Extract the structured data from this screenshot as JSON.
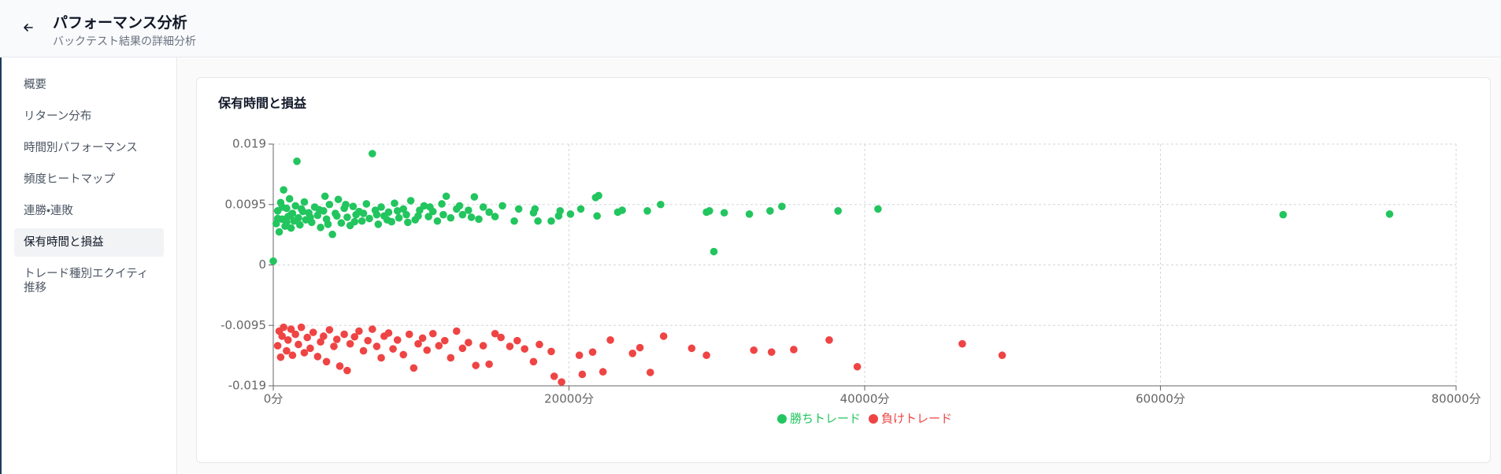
{
  "header": {
    "title": "パフォーマンス分析",
    "subtitle": "バックテスト結果の詳細分析"
  },
  "sidebar": {
    "items": [
      "概要",
      "リターン分布",
      "時間別パフォーマンス",
      "頻度ヒートマップ",
      "連勝・連敗",
      "保有時間と損益",
      "トレード種別エクイティ推移"
    ]
  },
  "chart_data": {
    "type": "scatter",
    "title": "保有時間と損益",
    "xlim": [
      0,
      80000
    ],
    "xticks": [
      {
        "value": 0,
        "label": "0分"
      },
      {
        "value": 20000,
        "label": "20000分"
      },
      {
        "value": 40000,
        "label": "40000分"
      },
      {
        "value": 60000,
        "label": "60000分"
      },
      {
        "value": 80000,
        "label": "80000分"
      }
    ],
    "ylim": [
      -0.019,
      0.019
    ],
    "yticks": [
      -0.019,
      -0.0095,
      0,
      0.0095,
      0.019
    ],
    "grid": true,
    "legend": "bottom",
    "series": [
      {
        "name": "勝ちトレード",
        "color": "#22c55e",
        "x": [
          0,
          200,
          300,
          300,
          400,
          500,
          600,
          600,
          700,
          800,
          900,
          900,
          1000,
          1100,
          1200,
          1200,
          1300,
          1400,
          1500,
          1600,
          1700,
          1800,
          1900,
          2000,
          2100,
          2200,
          2400,
          2500,
          2600,
          2800,
          3000,
          3100,
          3200,
          3400,
          3500,
          3600,
          3700,
          3800,
          4000,
          4200,
          4300,
          4400,
          4600,
          4800,
          4900,
          5000,
          5200,
          5400,
          5500,
          5600,
          5800,
          6000,
          6100,
          6300,
          6500,
          6700,
          6900,
          7000,
          7100,
          7300,
          7500,
          7700,
          7800,
          8000,
          8200,
          8400,
          8500,
          8800,
          9000,
          9100,
          9300,
          9600,
          9800,
          9900,
          10200,
          10500,
          10600,
          10800,
          11100,
          11400,
          11500,
          11700,
          12000,
          12400,
          12600,
          12800,
          13200,
          13400,
          13600,
          13900,
          14200,
          14600,
          15000,
          15500,
          16300,
          16600,
          17600,
          17700,
          17900,
          18800,
          19300,
          19400,
          20100,
          20800,
          21800,
          21900,
          22000,
          23300,
          23600,
          25300,
          26200,
          29300,
          29500,
          29800,
          30500,
          32200,
          33600,
          34400,
          38200,
          40900,
          68300,
          75500
        ],
        "values": [
          0.0006,
          0.0065,
          0.0085,
          0.0073,
          0.0052,
          0.0098,
          0.0072,
          0.0091,
          0.0118,
          0.0061,
          0.0089,
          0.0067,
          0.0076,
          0.0104,
          0.0058,
          0.0079,
          0.0081,
          0.0069,
          0.0093,
          0.0163,
          0.0074,
          0.0063,
          0.0088,
          0.0084,
          0.0099,
          0.0071,
          0.0082,
          0.0075,
          0.0067,
          0.0091,
          0.0078,
          0.0087,
          0.0059,
          0.0085,
          0.0108,
          0.0072,
          0.0064,
          0.0095,
          0.0048,
          0.0081,
          0.0077,
          0.0103,
          0.0066,
          0.0089,
          0.0095,
          0.0075,
          0.0062,
          0.0092,
          0.0068,
          0.0079,
          0.0084,
          0.0069,
          0.0081,
          0.0096,
          0.0073,
          0.0175,
          0.0086,
          0.0079,
          0.0064,
          0.0091,
          0.0077,
          0.0071,
          0.0083,
          0.0068,
          0.0097,
          0.0085,
          0.0074,
          0.0088,
          0.0079,
          0.0067,
          0.0101,
          0.0071,
          0.0077,
          0.0086,
          0.0093,
          0.0076,
          0.0091,
          0.0084,
          0.0069,
          0.0096,
          0.0079,
          0.0108,
          0.0074,
          0.0088,
          0.0093,
          0.0079,
          0.0086,
          0.0075,
          0.0107,
          0.0072,
          0.0091,
          0.0083,
          0.0076,
          0.0093,
          0.0069,
          0.0088,
          0.0082,
          0.0088,
          0.0069,
          0.0069,
          0.0077,
          0.0085,
          0.008,
          0.0088,
          0.0106,
          0.0077,
          0.0109,
          0.0083,
          0.0086,
          0.0085,
          0.0095,
          0.0083,
          0.0085,
          0.0021,
          0.0082,
          0.008,
          0.0085,
          0.0092,
          0.0085,
          0.0088,
          0.0079,
          0.008
        ]
      },
      {
        "name": "負けトレード",
        "color": "#ef4444",
        "x": [
          300,
          400,
          500,
          600,
          700,
          900,
          1000,
          1200,
          1300,
          1500,
          1700,
          1900,
          2100,
          2300,
          2500,
          2700,
          3000,
          3200,
          3400,
          3600,
          3800,
          4100,
          4300,
          4500,
          4800,
          5000,
          5200,
          5500,
          5800,
          6100,
          6400,
          6700,
          7000,
          7300,
          7500,
          7800,
          8100,
          8400,
          8800,
          9200,
          9500,
          9800,
          10100,
          10400,
          10800,
          11200,
          11600,
          12000,
          12400,
          12800,
          13200,
          13700,
          14200,
          14600,
          15000,
          15400,
          16000,
          16500,
          17000,
          17600,
          18000,
          18800,
          19000,
          19500,
          20700,
          20900,
          21600,
          22300,
          22800,
          24300,
          24800,
          25500,
          26400,
          28300,
          29300,
          32500,
          33700,
          35200,
          37600,
          39500,
          46600,
          49300
        ],
        "values": [
          -0.0127,
          -0.0104,
          -0.0145,
          -0.0112,
          -0.0098,
          -0.0135,
          -0.0118,
          -0.0101,
          -0.0142,
          -0.0109,
          -0.0125,
          -0.0098,
          -0.0138,
          -0.0114,
          -0.0131,
          -0.0106,
          -0.0144,
          -0.0121,
          -0.0112,
          -0.0152,
          -0.0102,
          -0.0128,
          -0.0117,
          -0.0159,
          -0.0109,
          -0.0166,
          -0.0124,
          -0.0113,
          -0.0104,
          -0.0135,
          -0.0119,
          -0.0101,
          -0.0128,
          -0.0146,
          -0.0112,
          -0.0107,
          -0.0132,
          -0.0118,
          -0.0141,
          -0.0109,
          -0.0162,
          -0.0124,
          -0.0115,
          -0.0134,
          -0.0108,
          -0.0127,
          -0.0119,
          -0.0146,
          -0.0104,
          -0.0131,
          -0.0122,
          -0.0158,
          -0.0127,
          -0.0156,
          -0.0108,
          -0.0114,
          -0.0128,
          -0.0119,
          -0.0132,
          -0.0152,
          -0.0125,
          -0.0136,
          -0.0175,
          -0.0184,
          -0.0142,
          -0.0172,
          -0.0137,
          -0.0168,
          -0.0118,
          -0.0139,
          -0.013,
          -0.0169,
          -0.0112,
          -0.0131,
          -0.0142,
          -0.0134,
          -0.0137,
          -0.0133,
          -0.0118,
          -0.016,
          -0.0124,
          -0.0142
        ]
      }
    ]
  }
}
